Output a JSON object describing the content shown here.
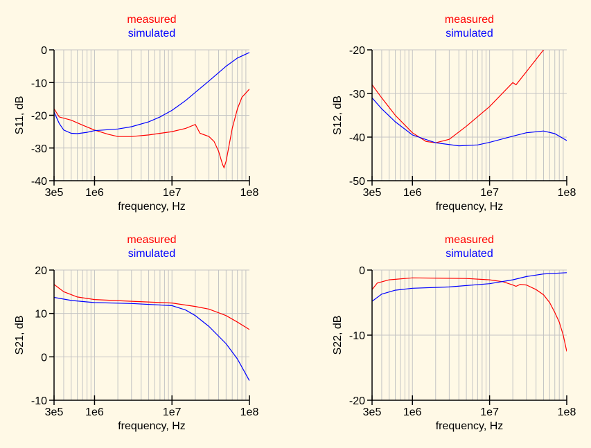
{
  "chart_data": [
    {
      "type": "line",
      "title_lines": [
        "measured",
        "simulated"
      ],
      "xlabel": "frequency, Hz",
      "ylabel": "S11, dB",
      "xscale": "log",
      "xlim": [
        300000,
        100000000
      ],
      "ylim": [
        -40,
        0
      ],
      "xticks": [
        300000,
        1000000,
        10000000,
        100000000
      ],
      "xtick_labels": [
        "3e5",
        "1e6",
        "1e7",
        "1e8"
      ],
      "yticks": [
        -40,
        -30,
        -20,
        -10,
        0
      ],
      "ytick_labels": [
        "-40",
        "-30",
        "-20",
        "-10",
        "0"
      ],
      "grid": true,
      "series": [
        {
          "name": "measured",
          "color": "#ff0000",
          "x": [
            300000.0,
            350000.0,
            500000.0,
            700000.0,
            1000000.0,
            1500000.0,
            2000000.0,
            3000000.0,
            5000000.0,
            10000000.0,
            15000000.0,
            20000000.0,
            23000000.0,
            30000000.0,
            35000000.0,
            40000000.0,
            45000000.0,
            47000000.0,
            50000000.0,
            60000000.0,
            70000000.0,
            80000000.0,
            100000000.0
          ],
          "y": [
            -18,
            -20.5,
            -21.5,
            -23,
            -24.5,
            -25.8,
            -26.5,
            -26.5,
            -26,
            -25,
            -24,
            -22.8,
            -25.5,
            -26.5,
            -28,
            -31,
            -35,
            -36,
            -34,
            -24,
            -18,
            -14.5,
            -12
          ]
        },
        {
          "name": "simulated",
          "color": "#0000ff",
          "x": [
            300000.0,
            350000.0,
            400000.0,
            500000.0,
            600000.0,
            800000.0,
            1000000.0,
            2000000.0,
            3000000.0,
            5000000.0,
            7000000.0,
            10000000.0,
            15000000.0,
            20000000.0,
            30000000.0,
            50000000.0,
            70000000.0,
            100000000.0
          ],
          "y": [
            -19,
            -22.5,
            -24.5,
            -25.5,
            -25.6,
            -25.2,
            -24.7,
            -24.2,
            -23.5,
            -22,
            -20.5,
            -18.5,
            -15.5,
            -13,
            -9.5,
            -5,
            -2.5,
            -0.8
          ]
        }
      ]
    },
    {
      "type": "line",
      "title_lines": [
        "measured",
        "simulated"
      ],
      "xlabel": "frequency, Hz",
      "ylabel": "S12, dB",
      "xscale": "log",
      "xlim": [
        300000,
        100000000
      ],
      "ylim": [
        -50,
        -20
      ],
      "xticks": [
        300000,
        1000000,
        10000000,
        100000000
      ],
      "xtick_labels": [
        "3e5",
        "1e6",
        "1e7",
        "1e8"
      ],
      "yticks": [
        -50,
        -40,
        -30,
        -20
      ],
      "ytick_labels": [
        "-50",
        "-40",
        "-30",
        "-20"
      ],
      "grid": true,
      "series": [
        {
          "name": "measured",
          "color": "#ff0000",
          "x": [
            300000.0,
            400000.0,
            600000.0,
            1000000.0,
            1500000.0,
            2000000.0,
            3000000.0,
            5000000.0,
            10000000.0,
            20000000.0,
            22000000.0,
            30000000.0,
            50000000.0,
            60000000.0
          ],
          "y": [
            -28,
            -31,
            -35,
            -39,
            -41,
            -41.3,
            -40.5,
            -37.5,
            -33,
            -27.5,
            -28,
            -25,
            -20,
            -19
          ]
        },
        {
          "name": "simulated",
          "color": "#0000ff",
          "x": [
            300000.0,
            400000.0,
            600000.0,
            1000000.0,
            2000000.0,
            4000000.0,
            7000000.0,
            10000000.0,
            20000000.0,
            30000000.0,
            50000000.0,
            70000000.0,
            100000000.0
          ],
          "y": [
            -31,
            -33.5,
            -36.5,
            -39.5,
            -41.3,
            -42,
            -41.8,
            -41.2,
            -39.8,
            -39,
            -38.6,
            -39.2,
            -40.8
          ]
        }
      ]
    },
    {
      "type": "line",
      "title_lines": [
        "measured",
        "simulated"
      ],
      "xlabel": "frequency, Hz",
      "ylabel": "S21, dB",
      "xscale": "log",
      "xlim": [
        300000,
        100000000
      ],
      "ylim": [
        -10,
        20
      ],
      "xticks": [
        300000,
        1000000,
        10000000,
        100000000
      ],
      "xtick_labels": [
        "3e5",
        "1e6",
        "1e7",
        "1e8"
      ],
      "yticks": [
        -10,
        0,
        10,
        20
      ],
      "ytick_labels": [
        "-10",
        "0",
        "10",
        "20"
      ],
      "grid": true,
      "series": [
        {
          "name": "measured",
          "color": "#ff0000",
          "x": [
            300000.0,
            400000.0,
            600000.0,
            1000000.0,
            3000000.0,
            10000000.0,
            20000000.0,
            30000000.0,
            50000000.0,
            70000000.0,
            100000000.0
          ],
          "y": [
            16.7,
            15,
            13.8,
            13.2,
            12.8,
            12.4,
            11.6,
            11,
            9.5,
            8,
            6.3
          ]
        },
        {
          "name": "simulated",
          "color": "#0000ff",
          "x": [
            300000.0,
            500000.0,
            1000000.0,
            3000000.0,
            10000000.0,
            15000000.0,
            20000000.0,
            30000000.0,
            50000000.0,
            70000000.0,
            100000000.0
          ],
          "y": [
            13.7,
            13,
            12.5,
            12.3,
            11.8,
            10.8,
            9.5,
            7,
            3,
            -0.5,
            -5.5
          ]
        }
      ]
    },
    {
      "type": "line",
      "title_lines": [
        "measured",
        "simulated"
      ],
      "xlabel": "frequency, Hz",
      "ylabel": "S22, dB",
      "xscale": "log",
      "xlim": [
        300000,
        100000000
      ],
      "ylim": [
        -20,
        0
      ],
      "xticks": [
        300000,
        1000000,
        10000000,
        100000000
      ],
      "xtick_labels": [
        "3e5",
        "1e6",
        "1e7",
        "1e8"
      ],
      "yticks": [
        -20,
        -10,
        0
      ],
      "ytick_labels": [
        "-20",
        "-10",
        "0"
      ],
      "grid": true,
      "series": [
        {
          "name": "measured",
          "color": "#ff0000",
          "x": [
            300000.0,
            350000.0,
            500000.0,
            1000000.0,
            5000000.0,
            10000000.0,
            15000000.0,
            20000000.0,
            22000000.0,
            25000000.0,
            30000000.0,
            40000000.0,
            50000000.0,
            60000000.0,
            70000000.0,
            80000000.0,
            90000000.0,
            100000000.0
          ],
          "y": [
            -3,
            -2,
            -1.5,
            -1.2,
            -1.3,
            -1.5,
            -1.8,
            -2.3,
            -2.5,
            -2.2,
            -2.3,
            -3,
            -3.8,
            -5,
            -6.5,
            -8,
            -10,
            -12.5
          ]
        },
        {
          "name": "simulated",
          "color": "#0000ff",
          "x": [
            300000.0,
            400000.0,
            600000.0,
            1000000.0,
            3000000.0,
            10000000.0,
            20000000.0,
            30000000.0,
            50000000.0,
            100000000.0
          ],
          "y": [
            -4.8,
            -3.7,
            -3.1,
            -2.8,
            -2.6,
            -2.1,
            -1.5,
            -1,
            -0.6,
            -0.4
          ]
        }
      ]
    }
  ]
}
